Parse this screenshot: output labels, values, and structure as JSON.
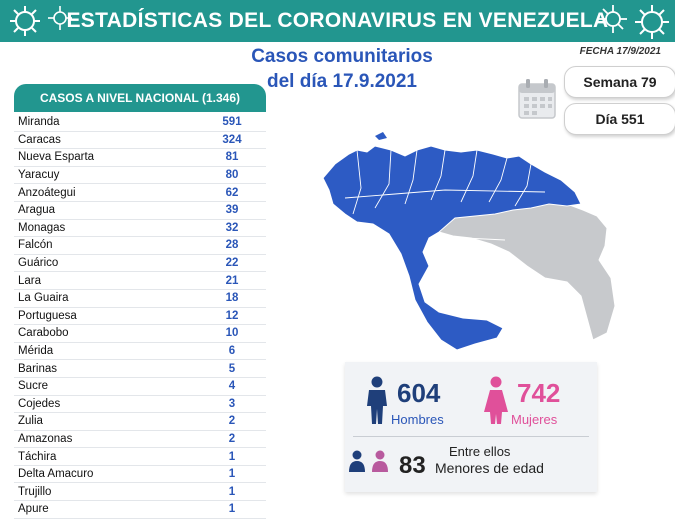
{
  "header": {
    "title": "ESTADÍSTICAS DEL CORONAVIRUS EN VENEZUELA",
    "date": "FECHA 17/9/2021"
  },
  "headline": {
    "line1": "Casos comunitarios",
    "line2": "del día 17.9.2021"
  },
  "counters": {
    "semana": "Semana 79",
    "dia": "Día 551"
  },
  "table": {
    "title": "CASOS A NIVEL NACIONAL (1.346)",
    "rows": [
      {
        "name": "Miranda",
        "value": "591"
      },
      {
        "name": "Caracas",
        "value": "324"
      },
      {
        "name": "Nueva Esparta",
        "value": "81"
      },
      {
        "name": "Yaracuy",
        "value": "80"
      },
      {
        "name": "Anzoátegui",
        "value": "62"
      },
      {
        "name": "Aragua",
        "value": "39"
      },
      {
        "name": "Monagas",
        "value": "32"
      },
      {
        "name": "Falcón",
        "value": "28"
      },
      {
        "name": "Guárico",
        "value": "22"
      },
      {
        "name": "Lara",
        "value": "21"
      },
      {
        "name": "La Guaira",
        "value": "18"
      },
      {
        "name": "Portuguesa",
        "value": "12"
      },
      {
        "name": "Carabobo",
        "value": "10"
      },
      {
        "name": "Mérida",
        "value": "6"
      },
      {
        "name": "Barinas",
        "value": "5"
      },
      {
        "name": "Sucre",
        "value": "4"
      },
      {
        "name": "Cojedes",
        "value": "3"
      },
      {
        "name": "Zulia",
        "value": "2"
      },
      {
        "name": "Amazonas",
        "value": "2"
      },
      {
        "name": "Táchira",
        "value": "1"
      },
      {
        "name": "Delta Amacuro",
        "value": "1"
      },
      {
        "name": "Trujillo",
        "value": "1"
      },
      {
        "name": "Apure",
        "value": "1"
      }
    ]
  },
  "stats": {
    "men_count": "604",
    "men_label": "Hombres",
    "women_count": "742",
    "women_label": "Mujeres",
    "minors_intro": "Entre ellos",
    "minors_count": "83",
    "minors_label": "Menores de edad"
  },
  "colors": {
    "teal": "#22968f",
    "blue": "#2a56b8",
    "map_blue": "#2d5bc4",
    "map_grey": "#c7c9cc",
    "pink": "#e0509a",
    "men_icon": "#1f3f7a"
  },
  "icons": [
    "virus-icon",
    "calendar-icon",
    "man-icon",
    "woman-icon",
    "children-icon"
  ]
}
